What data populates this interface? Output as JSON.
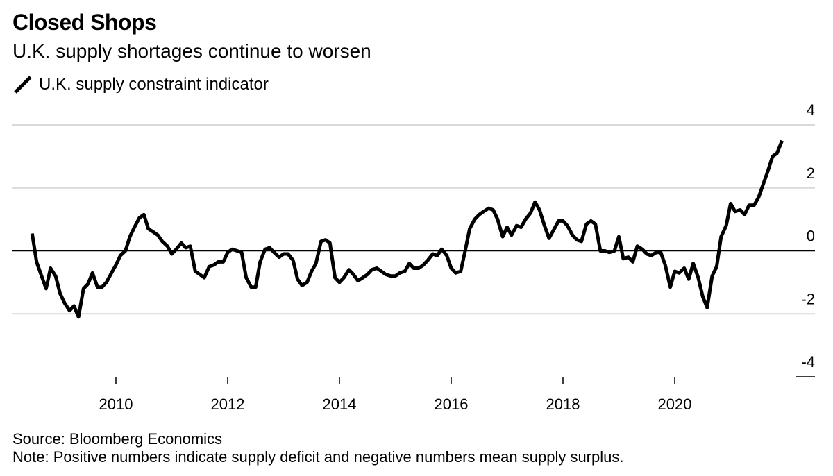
{
  "header": {
    "title": "Closed Shops",
    "subtitle": "U.K. supply shortages continue to worsen"
  },
  "legend": {
    "label": "U.K. supply constraint indicator",
    "icon": "diagonal-line-icon"
  },
  "footer": {
    "source": "Source: Bloomberg Economics",
    "note": "Note: Positive numbers indicate supply deficit and negative numbers mean supply surplus."
  },
  "colors": {
    "line": "#000000",
    "grid": "#d9d9d9",
    "zero_line": "#000000",
    "text": "#000000"
  },
  "chart_data": {
    "type": "line",
    "ylim": [
      -4,
      4
    ],
    "yticks": [
      4,
      2,
      0,
      -2,
      -4
    ],
    "xticks": [
      2010,
      2012,
      2014,
      2016,
      2018,
      2020
    ],
    "grid": "horizontal",
    "legend_position": "top-left",
    "series": [
      {
        "name": "U.K. supply constraint indicator",
        "x": [
          2008.5,
          2008.58,
          2008.67,
          2008.75,
          2008.83,
          2008.92,
          2009.0,
          2009.08,
          2009.17,
          2009.25,
          2009.33,
          2009.42,
          2009.5,
          2009.58,
          2009.67,
          2009.75,
          2009.83,
          2009.92,
          2010.0,
          2010.08,
          2010.17,
          2010.25,
          2010.33,
          2010.42,
          2010.5,
          2010.58,
          2010.67,
          2010.75,
          2010.83,
          2010.92,
          2011.0,
          2011.08,
          2011.17,
          2011.25,
          2011.33,
          2011.42,
          2011.5,
          2011.58,
          2011.67,
          2011.75,
          2011.83,
          2011.92,
          2012.0,
          2012.08,
          2012.17,
          2012.25,
          2012.33,
          2012.42,
          2012.5,
          2012.58,
          2012.67,
          2012.75,
          2012.83,
          2012.92,
          2013.0,
          2013.08,
          2013.17,
          2013.25,
          2013.33,
          2013.42,
          2013.5,
          2013.58,
          2013.67,
          2013.75,
          2013.83,
          2013.92,
          2014.0,
          2014.08,
          2014.17,
          2014.25,
          2014.33,
          2014.42,
          2014.5,
          2014.58,
          2014.67,
          2014.75,
          2014.83,
          2014.92,
          2015.0,
          2015.08,
          2015.17,
          2015.25,
          2015.33,
          2015.42,
          2015.5,
          2015.58,
          2015.67,
          2015.75,
          2015.83,
          2015.92,
          2016.0,
          2016.08,
          2016.17,
          2016.25,
          2016.33,
          2016.42,
          2016.5,
          2016.58,
          2016.67,
          2016.75,
          2016.83,
          2016.92,
          2017.0,
          2017.08,
          2017.17,
          2017.25,
          2017.33,
          2017.42,
          2017.5,
          2017.58,
          2017.67,
          2017.75,
          2017.83,
          2017.92,
          2018.0,
          2018.08,
          2018.17,
          2018.25,
          2018.33,
          2018.42,
          2018.5,
          2018.58,
          2018.67,
          2018.75,
          2018.83,
          2018.92,
          2019.0,
          2019.08,
          2019.17,
          2019.25,
          2019.33,
          2019.42,
          2019.5,
          2019.58,
          2019.67,
          2019.75,
          2019.83,
          2019.92,
          2020.0,
          2020.08,
          2020.17,
          2020.25,
          2020.33,
          2020.42,
          2020.5,
          2020.58,
          2020.67,
          2020.75,
          2020.83,
          2020.92,
          2021.0,
          2021.08,
          2021.17,
          2021.25,
          2021.33,
          2021.42,
          2021.5,
          2021.58,
          2021.67,
          2021.75,
          2021.83,
          2021.92
        ],
        "values": [
          0.55,
          -0.35,
          -0.8,
          -1.2,
          -0.55,
          -0.8,
          -1.35,
          -1.65,
          -1.9,
          -1.75,
          -2.1,
          -1.2,
          -1.05,
          -0.7,
          -1.15,
          -1.15,
          -1.0,
          -0.7,
          -0.45,
          -0.15,
          0.0,
          0.45,
          0.75,
          1.05,
          1.15,
          0.7,
          0.6,
          0.5,
          0.3,
          0.15,
          -0.1,
          0.05,
          0.25,
          0.1,
          0.15,
          -0.65,
          -0.75,
          -0.85,
          -0.5,
          -0.45,
          -0.35,
          -0.35,
          -0.05,
          0.05,
          0.0,
          -0.05,
          -0.85,
          -1.15,
          -1.15,
          -0.35,
          0.05,
          0.1,
          -0.05,
          -0.2,
          -0.1,
          -0.1,
          -0.3,
          -0.9,
          -1.1,
          -1.0,
          -0.65,
          -0.4,
          0.3,
          0.35,
          0.25,
          -0.85,
          -1.0,
          -0.85,
          -0.6,
          -0.75,
          -0.95,
          -0.85,
          -0.75,
          -0.6,
          -0.55,
          -0.65,
          -0.75,
          -0.8,
          -0.8,
          -0.7,
          -0.65,
          -0.4,
          -0.55,
          -0.55,
          -0.45,
          -0.3,
          -0.1,
          -0.15,
          0.05,
          -0.15,
          -0.55,
          -0.7,
          -0.65,
          0.0,
          0.7,
          1.0,
          1.15,
          1.25,
          1.35,
          1.3,
          1.0,
          0.45,
          0.75,
          0.5,
          0.8,
          0.75,
          1.0,
          1.2,
          1.55,
          1.3,
          0.8,
          0.4,
          0.65,
          0.95,
          0.95,
          0.8,
          0.5,
          0.35,
          0.3,
          0.85,
          0.95,
          0.85,
          0.0,
          0.0,
          -0.05,
          0.0,
          0.45,
          -0.25,
          -0.2,
          -0.35,
          0.15,
          0.05,
          -0.1,
          -0.15,
          -0.05,
          -0.05,
          -0.45,
          -1.15,
          -0.65,
          -0.7,
          -0.55,
          -0.9,
          -0.4,
          -0.85,
          -1.45,
          -1.8,
          -0.8,
          -0.5,
          0.45,
          0.8,
          1.5,
          1.25,
          1.3,
          1.15,
          1.45,
          1.45,
          1.7,
          2.1,
          2.55,
          3.0,
          3.1,
          3.5
        ]
      }
    ]
  }
}
